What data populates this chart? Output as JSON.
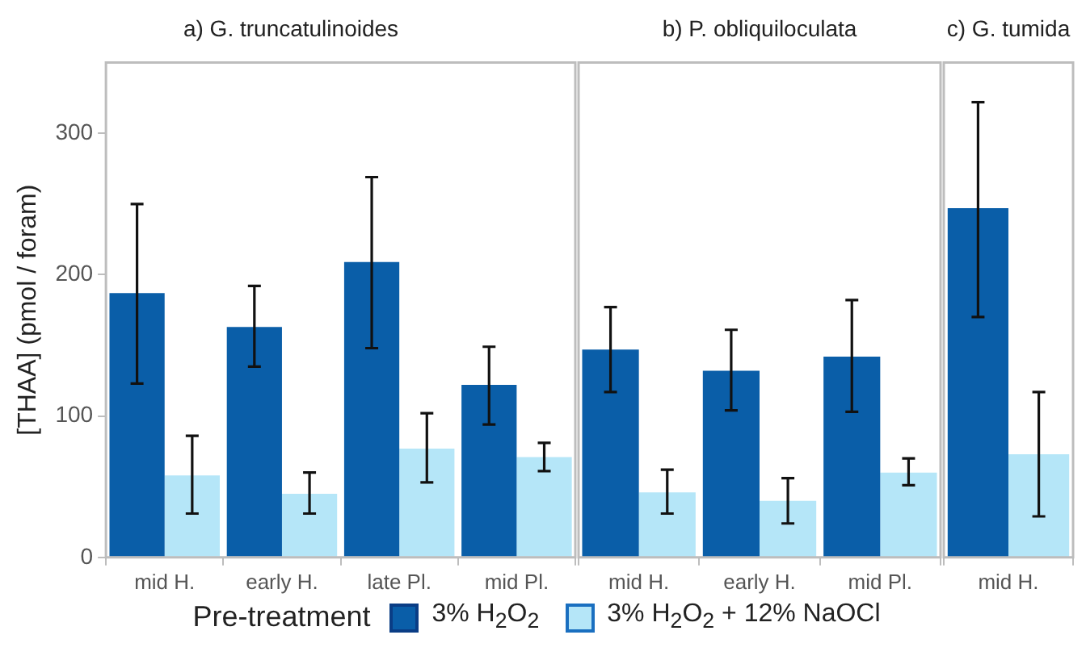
{
  "chart_data": [
    {
      "type": "bar",
      "title": "a) G. truncatulinoides",
      "ylabel": "[THAA] (pmol / foram)",
      "legend_title": "Pre-treatment",
      "legend": "bottom",
      "grid": false,
      "categories": [
        "mid H.",
        "early H.",
        "late Pl.",
        "mid Pl."
      ],
      "ylim": [
        0,
        350
      ],
      "yticks": [
        0,
        100,
        200,
        300
      ],
      "series": [
        {
          "name": "3% H$_{2}$O$_{2}$",
          "color": "#0a5ea8",
          "values": [
            187,
            163,
            209,
            122
          ],
          "errors": [
            [
              123,
              250
            ],
            [
              135,
              192
            ],
            [
              148,
              269
            ],
            [
              94,
              149
            ]
          ]
        },
        {
          "name": "3% H$_{2}$O$_{2}$ + 12% NaOCl",
          "color": "#b5e6f8",
          "values": [
            58,
            45,
            77,
            71
          ],
          "errors": [
            [
              31,
              86
            ],
            [
              31,
              60
            ],
            [
              53,
              102
            ],
            [
              61,
              81
            ]
          ]
        }
      ]
    },
    {
      "type": "bar",
      "title": "b) P. obliquiloculata",
      "grid": false,
      "tick_labels": "x",
      "categories": [
        "mid H.",
        "early H.",
        "mid Pl."
      ],
      "ylim": [
        0,
        350
      ],
      "series": [
        {
          "color": "#0a5ea8",
          "values": [
            147,
            132,
            142
          ],
          "errors": [
            [
              117,
              177
            ],
            [
              104,
              161
            ],
            [
              103,
              182
            ]
          ]
        },
        {
          "color": "#b5e6f8",
          "values": [
            46,
            40,
            60
          ],
          "errors": [
            [
              31,
              62
            ],
            [
              24,
              56
            ],
            [
              51,
              70
            ]
          ]
        }
      ]
    },
    {
      "type": "bar",
      "title": "c) G. tumida",
      "grid": false,
      "tick_labels": "x",
      "categories": [
        "mid H."
      ],
      "ylim": [
        0,
        350
      ],
      "series": [
        {
          "color": "#0a5ea8",
          "values": [
            247
          ],
          "errors": [
            [
              170,
              322
            ]
          ]
        },
        {
          "color": "#b5e6f8",
          "values": [
            73
          ],
          "errors": [
            [
              29,
              117
            ]
          ]
        }
      ]
    }
  ]
}
